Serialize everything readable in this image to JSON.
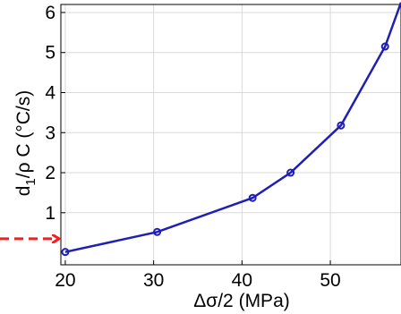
{
  "chart_data": {
    "type": "line",
    "x": [
      20,
      30.4,
      41.2,
      45.5,
      51.2,
      56.2
    ],
    "series": [
      {
        "values": [
          0.02,
          0.52,
          1.37,
          2.0,
          3.18,
          5.15
        ],
        "color": "#1f1fb4"
      }
    ],
    "xlabel_parts": {
      "main": "Δσ/2 (MPa)"
    },
    "ylabel_parts": {
      "pre": "d",
      "sub": "1",
      "post": "/ρ C (°C/s)"
    },
    "xlim": [
      19.5,
      58
    ],
    "ylim": [
      -0.3,
      6.2
    ],
    "xticks": [
      20,
      30,
      40,
      50
    ],
    "yticks": [
      1,
      2,
      3,
      4,
      5,
      6
    ],
    "grid": true,
    "marker": "circle",
    "annotation": {
      "type": "arrow",
      "color": "#ff1a1a",
      "style": "dashed",
      "points_to": "y=0.35"
    }
  }
}
